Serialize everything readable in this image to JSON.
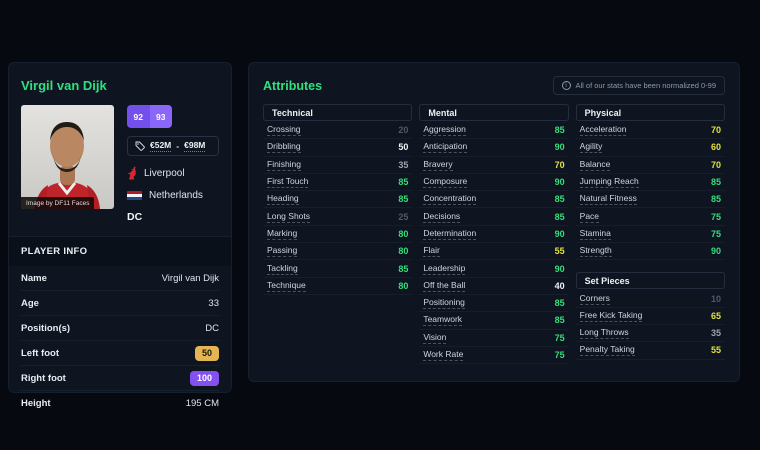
{
  "player_card": {
    "title": "Virgil van Dijk",
    "photo_caption": "Image by DF11 Faces",
    "ratings": {
      "current": "92",
      "potential": "93"
    },
    "value_from": "€52M",
    "value_separator": "-",
    "value_to": "€98M",
    "club": "Liverpool",
    "nation": "Netherlands",
    "position_badge": "DC",
    "info_header": "PLAYER INFO",
    "info_rows": [
      {
        "label": "Name",
        "value": "Virgil van Dijk",
        "type": "text"
      },
      {
        "label": "Age",
        "value": "33",
        "type": "text"
      },
      {
        "label": "Position(s)",
        "value": "DC",
        "type": "text"
      },
      {
        "label": "Left foot",
        "value": "50",
        "type": "badge-gold"
      },
      {
        "label": "Right foot",
        "value": "100",
        "type": "badge-purple"
      },
      {
        "label": "Height",
        "value": "195 CM",
        "type": "text"
      }
    ]
  },
  "attributes": {
    "title": "Attributes",
    "note": "All of our stats have been normalized 0-99",
    "groups": [
      {
        "name": "Technical",
        "stats": [
          {
            "label": "Crossing",
            "value": 20
          },
          {
            "label": "Dribbling",
            "value": 50
          },
          {
            "label": "Finishing",
            "value": 35
          },
          {
            "label": "First Touch",
            "value": 85
          },
          {
            "label": "Heading",
            "value": 85
          },
          {
            "label": "Long Shots",
            "value": 25
          },
          {
            "label": "Marking",
            "value": 80
          },
          {
            "label": "Passing",
            "value": 80
          },
          {
            "label": "Tackling",
            "value": 85
          },
          {
            "label": "Technique",
            "value": 80
          }
        ]
      },
      {
        "name": "Mental",
        "stats": [
          {
            "label": "Aggression",
            "value": 85
          },
          {
            "label": "Anticipation",
            "value": 90
          },
          {
            "label": "Bravery",
            "value": 70
          },
          {
            "label": "Composure",
            "value": 90
          },
          {
            "label": "Concentration",
            "value": 85
          },
          {
            "label": "Decisions",
            "value": 85
          },
          {
            "label": "Determination",
            "value": 90
          },
          {
            "label": "Flair",
            "value": 55
          },
          {
            "label": "Leadership",
            "value": 90
          },
          {
            "label": "Off the Ball",
            "value": 40
          },
          {
            "label": "Positioning",
            "value": 85
          },
          {
            "label": "Teamwork",
            "value": 85
          },
          {
            "label": "Vision",
            "value": 75
          },
          {
            "label": "Work Rate",
            "value": 75
          }
        ]
      },
      {
        "name": "Physical",
        "stats": [
          {
            "label": "Acceleration",
            "value": 70
          },
          {
            "label": "Agility",
            "value": 60
          },
          {
            "label": "Balance",
            "value": 70
          },
          {
            "label": "Jumping Reach",
            "value": 85
          },
          {
            "label": "Natural Fitness",
            "value": 85
          },
          {
            "label": "Pace",
            "value": 75
          },
          {
            "label": "Stamina",
            "value": 75
          },
          {
            "label": "Strength",
            "value": 90
          }
        ]
      },
      {
        "name": "Set Pieces",
        "stats": [
          {
            "label": "Corners",
            "value": 10
          },
          {
            "label": "Free Kick Taking",
            "value": 65
          },
          {
            "label": "Long Throws",
            "value": 35
          },
          {
            "label": "Penalty Taking",
            "value": 55
          }
        ]
      }
    ]
  },
  "colors": {
    "accent_green": "#2ee07f",
    "value_green": "#35df7b",
    "value_yellow": "#e6e13a",
    "value_white": "#eef1f4",
    "value_gray": "#9aa4b2",
    "value_dim": "#4e5a69",
    "badge_purple": "#8450f0",
    "badge_gold": "#e3b554",
    "club_red": "#d7282f",
    "panel_bg": "#0e1521",
    "page_bg": "#06090f"
  },
  "value_thresholds": {
    "green": 75,
    "yellow": 55,
    "white": 40,
    "gray": 30
  }
}
